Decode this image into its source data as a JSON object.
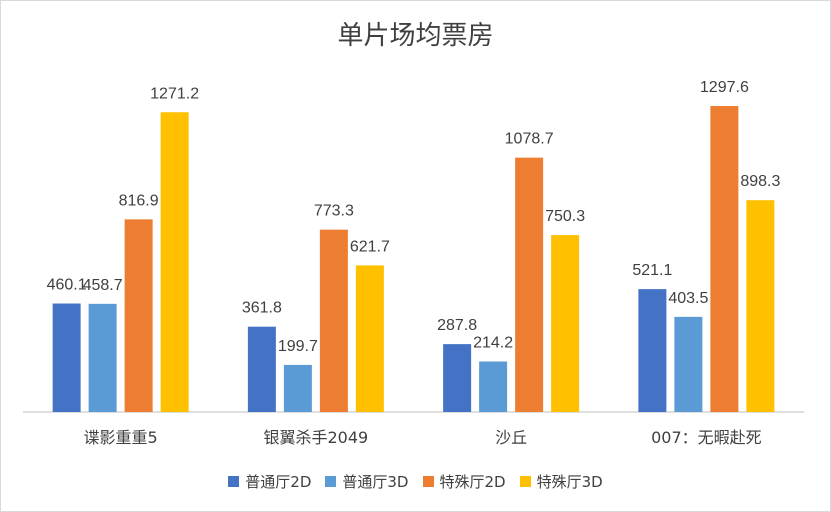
{
  "chart_data": {
    "type": "bar",
    "title": "单片场均票房",
    "categories": [
      "谍影重重5",
      "银翼杀手2049",
      "沙丘",
      "007：无暇赴死"
    ],
    "series": [
      {
        "name": "普通厅2D",
        "color": "#4472C4",
        "values": [
          460.1,
          361.8,
          287.8,
          521.1
        ]
      },
      {
        "name": "普通厅3D",
        "color": "#5B9BD5",
        "values": [
          458.7,
          199.7,
          214.2,
          403.5
        ]
      },
      {
        "name": "特殊厅2D",
        "color": "#ED7D31",
        "values": [
          816.9,
          773.3,
          1078.7,
          1297.6
        ]
      },
      {
        "name": "特殊厅3D",
        "color": "#FFC000",
        "values": [
          1271.2,
          621.7,
          750.3,
          898.3
        ]
      }
    ],
    "ylim": [
      0,
      1400
    ],
    "grid": false,
    "legend_position": "bottom"
  }
}
